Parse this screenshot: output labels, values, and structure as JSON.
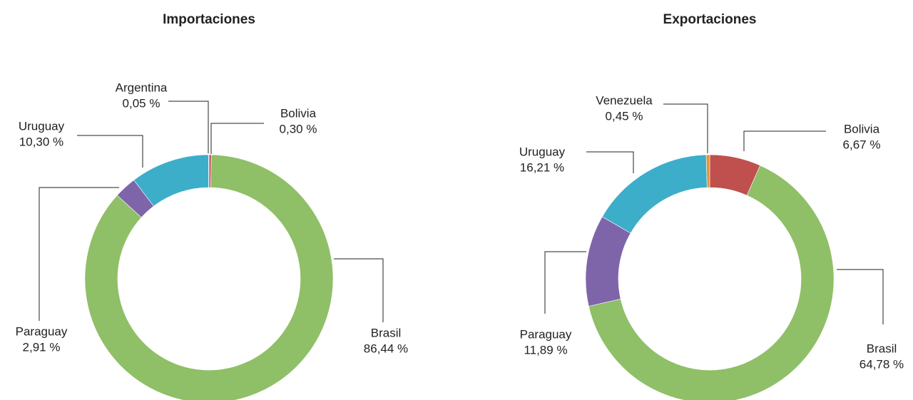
{
  "chart_data": [
    {
      "type": "pie",
      "title": "Importaciones",
      "categories": [
        "Bolivia",
        "Brasil",
        "Paraguay",
        "Uruguay",
        "Argentina"
      ],
      "values": [
        0.3,
        86.44,
        2.91,
        10.3,
        0.05
      ],
      "value_labels": [
        "0,30 %",
        "86,44 %",
        "2,91 %",
        "10,30 %",
        "0,05 %"
      ],
      "colors": [
        "#c0504d",
        "#8fbf67",
        "#7e65aa",
        "#3caec9",
        "#e8923a"
      ]
    },
    {
      "type": "pie",
      "title": "Exportaciones",
      "categories": [
        "Bolivia",
        "Brasil",
        "Paraguay",
        "Uruguay",
        "Venezuela"
      ],
      "values": [
        6.67,
        64.78,
        11.89,
        16.21,
        0.45
      ],
      "value_labels": [
        "6,67 %",
        "64,78 %",
        "11,89 %",
        "16,21 %",
        "0,45 %"
      ],
      "colors": [
        "#c0504d",
        "#8fbf67",
        "#7e65aa",
        "#3caec9",
        "#e8923a"
      ]
    }
  ]
}
